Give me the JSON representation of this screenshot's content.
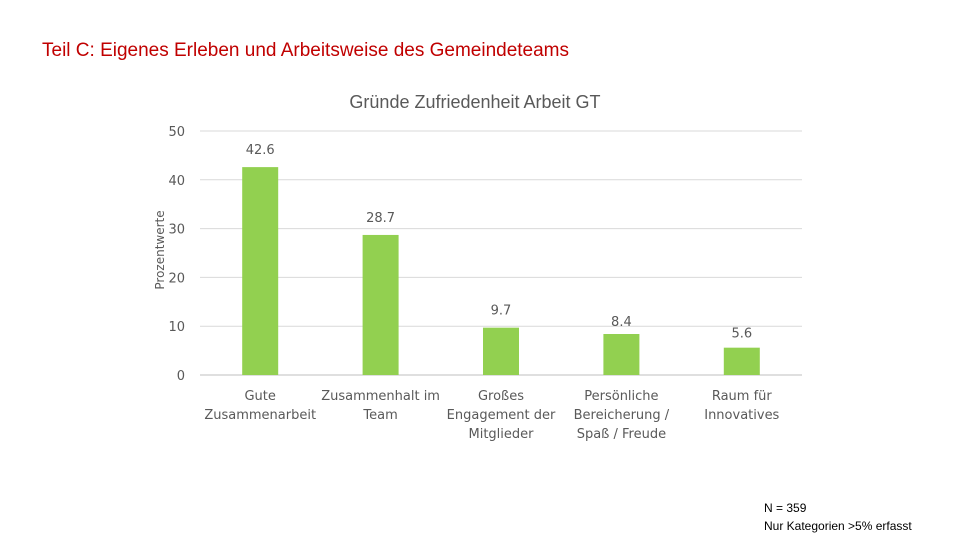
{
  "slide": {
    "title": "Teil C: Eigenes Erleben und Arbeitsweise des Gemeindeteams"
  },
  "footnote": {
    "n": "N = 359",
    "note": "Nur Kategorien >5% erfasst"
  },
  "colors": {
    "title": "#c00000",
    "bar": "#92d050",
    "grid": "#d9d9d9",
    "text": "#595959"
  },
  "chart_data": {
    "type": "bar",
    "title": "Gründe Zufriedenheit Arbeit GT",
    "xlabel": "",
    "ylabel": "Prozentwerte",
    "ylim": [
      0,
      50
    ],
    "yticks": [
      0,
      10,
      20,
      30,
      40,
      50
    ],
    "grid": true,
    "categories": [
      [
        "Gute",
        "Zusammenarbeit"
      ],
      [
        "Zusammenhalt im",
        "Team"
      ],
      [
        "Großes",
        "Engagement der",
        "Mitglieder"
      ],
      [
        "Persönliche",
        "Bereicherung /",
        "Spaß / Freude"
      ],
      [
        "Raum für",
        "Innovatives"
      ]
    ],
    "values": [
      42.6,
      28.7,
      9.7,
      8.4,
      5.6
    ],
    "data_labels": [
      "42.6",
      "28.7",
      "9.7",
      "8.4",
      "5.6"
    ]
  }
}
